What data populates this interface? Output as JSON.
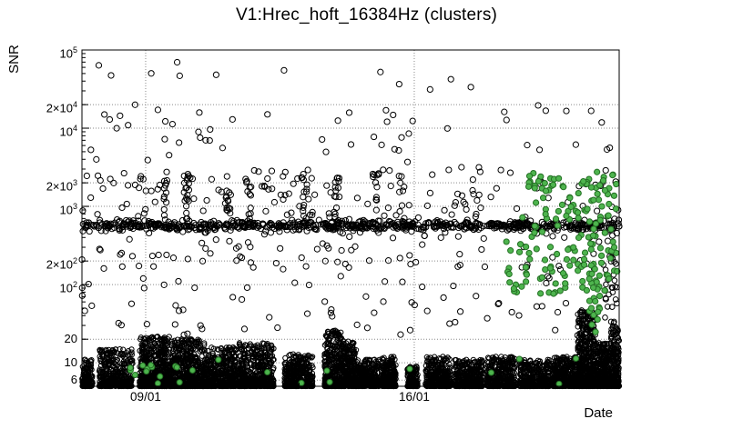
{
  "chart_data": {
    "type": "scatter",
    "title": "V1:Hrec_hoft_16384Hz (clusters)",
    "xlabel": "Date",
    "ylabel": "SNR",
    "x_axis": {
      "unit": "days",
      "range_days": [
        0,
        14
      ],
      "major_ticks": [
        {
          "day": 1.66,
          "label": "09/01"
        },
        {
          "day": 8.66,
          "label": "16/01"
        }
      ],
      "minor_first_day": 0.66,
      "minor_step_days": 1
    },
    "y_axis": {
      "scale": "log",
      "min": 5,
      "max": 100000,
      "ticks": [
        {
          "v": 100000,
          "text": "10",
          "sup": "5"
        },
        {
          "v": 20000,
          "text": "2×10",
          "sup": "4"
        },
        {
          "v": 10000,
          "text": "10",
          "sup": "4"
        },
        {
          "v": 2000,
          "text": "2×10",
          "sup": "3"
        },
        {
          "v": 1000,
          "text": "10",
          "sup": "3"
        },
        {
          "v": 200,
          "text": "2×10",
          "sup": "2"
        },
        {
          "v": 100,
          "text": "10",
          "sup": "2"
        },
        {
          "v": 20,
          "text": "20",
          "sup": ""
        },
        {
          "v": 10,
          "text": "10",
          "sup": ""
        },
        {
          "v": 6,
          "text": "6",
          "sup": ""
        }
      ]
    },
    "colors": {
      "marker_black": "#000000",
      "marker_green": "#4eb44e",
      "marker_green_edge": "#247024",
      "grid": "#8a8a8a",
      "frame": "#000000"
    },
    "grid": true,
    "legend": "none",
    "seed": 1337,
    "series": [
      {
        "name": "low-snr-grass",
        "dist": "grass",
        "color": "black",
        "r": 2.6,
        "snr_min": 5,
        "bias": 2.2,
        "segments": [
          [
            0.0,
            0.28,
            160,
            11
          ],
          [
            0.45,
            1.32,
            420,
            15
          ],
          [
            1.5,
            2.3,
            700,
            22
          ],
          [
            2.3,
            3.2,
            650,
            20
          ],
          [
            3.2,
            4.1,
            520,
            16
          ],
          [
            4.1,
            5.0,
            520,
            18
          ],
          [
            5.28,
            6.02,
            420,
            13
          ],
          [
            6.32,
            6.8,
            380,
            26
          ],
          [
            6.8,
            7.15,
            280,
            20
          ],
          [
            7.15,
            7.75,
            330,
            11
          ],
          [
            7.8,
            8.18,
            260,
            12
          ],
          [
            8.48,
            8.75,
            170,
            9
          ],
          [
            8.95,
            9.6,
            330,
            12
          ],
          [
            9.7,
            10.45,
            380,
            11
          ],
          [
            10.55,
            11.3,
            380,
            12
          ],
          [
            11.4,
            12.2,
            400,
            11
          ],
          [
            12.25,
            12.9,
            380,
            12
          ],
          [
            12.92,
            13.38,
            520,
            48
          ],
          [
            13.4,
            13.75,
            300,
            18
          ],
          [
            13.78,
            14.0,
            220,
            30
          ]
        ]
      },
      {
        "name": "snr-band",
        "dist": "lognormal",
        "color": "black",
        "r": 3.1,
        "n": 750,
        "x": [
          0,
          14
        ],
        "median": 570,
        "logsigma": 0.032
      },
      {
        "name": "band-clumps",
        "dist": "clumps",
        "color": "black",
        "r": 3.1,
        "jitter": 0.07,
        "snr": [
          550,
          2600
        ],
        "clumps": [
          [
            2.2,
            12
          ],
          [
            2.73,
            16
          ],
          [
            3.8,
            14
          ],
          [
            4.35,
            10
          ],
          [
            5.81,
            14
          ],
          [
            6.64,
            16
          ],
          [
            7.64,
            12
          ],
          [
            8.3,
            8
          ]
        ]
      },
      {
        "name": "scatter-high",
        "dist": "loguniform",
        "color": "black",
        "r": 3.1,
        "n": 140,
        "x": [
          0,
          14
        ],
        "snr": [
          700,
          3000
        ]
      },
      {
        "name": "scatter-mid",
        "dist": "loguniform",
        "color": "black",
        "r": 3.1,
        "n": 90,
        "x": [
          0,
          14
        ],
        "snr": [
          150,
          480
        ]
      },
      {
        "name": "scatter-low",
        "dist": "loguniform",
        "color": "black",
        "r": 3.1,
        "n": 70,
        "x": [
          0,
          14
        ],
        "snr": [
          22,
          130
        ]
      },
      {
        "name": "scatter-very-high",
        "dist": "loguniform",
        "color": "black",
        "r": 3.1,
        "n": 55,
        "x": [
          0,
          14
        ],
        "snr": [
          3000,
          20000
        ]
      },
      {
        "name": "scatter-top",
        "dist": "loguniform",
        "color": "black",
        "r": 3.1,
        "n": 12,
        "x": [
          0.3,
          13.6
        ],
        "snr": [
          30000,
          70000
        ]
      },
      {
        "name": "right-edge-column",
        "dist": "loguniform",
        "color": "black",
        "r": 2.8,
        "n": 30,
        "x": [
          13.55,
          13.95
        ],
        "snr": [
          30,
          300
        ]
      },
      {
        "name": "green-mid",
        "dist": "loguniform",
        "color": "green",
        "r": 3.1,
        "n": 80,
        "x": [
          11.0,
          13.95
        ],
        "snr": [
          75,
          380
        ]
      },
      {
        "name": "green-high",
        "dist": "loguniform",
        "color": "green",
        "r": 3.1,
        "n": 60,
        "x": [
          11.6,
          14.0
        ],
        "snr": [
          850,
          2800
        ]
      },
      {
        "name": "green-band-level",
        "dist": "loguniform",
        "color": "green",
        "r": 3.1,
        "n": 28,
        "x": [
          11.4,
          13.95
        ],
        "snr": [
          380,
          850
        ]
      },
      {
        "name": "green-column",
        "dist": "loguniform",
        "color": "green",
        "r": 3.1,
        "n": 22,
        "x": [
          13.22,
          13.5
        ],
        "snr": [
          22,
          260
        ]
      },
      {
        "name": "green-bottom-left",
        "dist": "loguniform",
        "color": "green",
        "r": 3.0,
        "n": 14,
        "x": [
          0.55,
          2.9
        ],
        "snr": [
          5.3,
          9.5
        ]
      },
      {
        "name": "green-bottom-scatter",
        "dist": "loguniform",
        "color": "green",
        "r": 3.0,
        "n": 10,
        "x": [
          3.0,
          13.6
        ],
        "snr": [
          5.3,
          13
        ]
      }
    ]
  }
}
